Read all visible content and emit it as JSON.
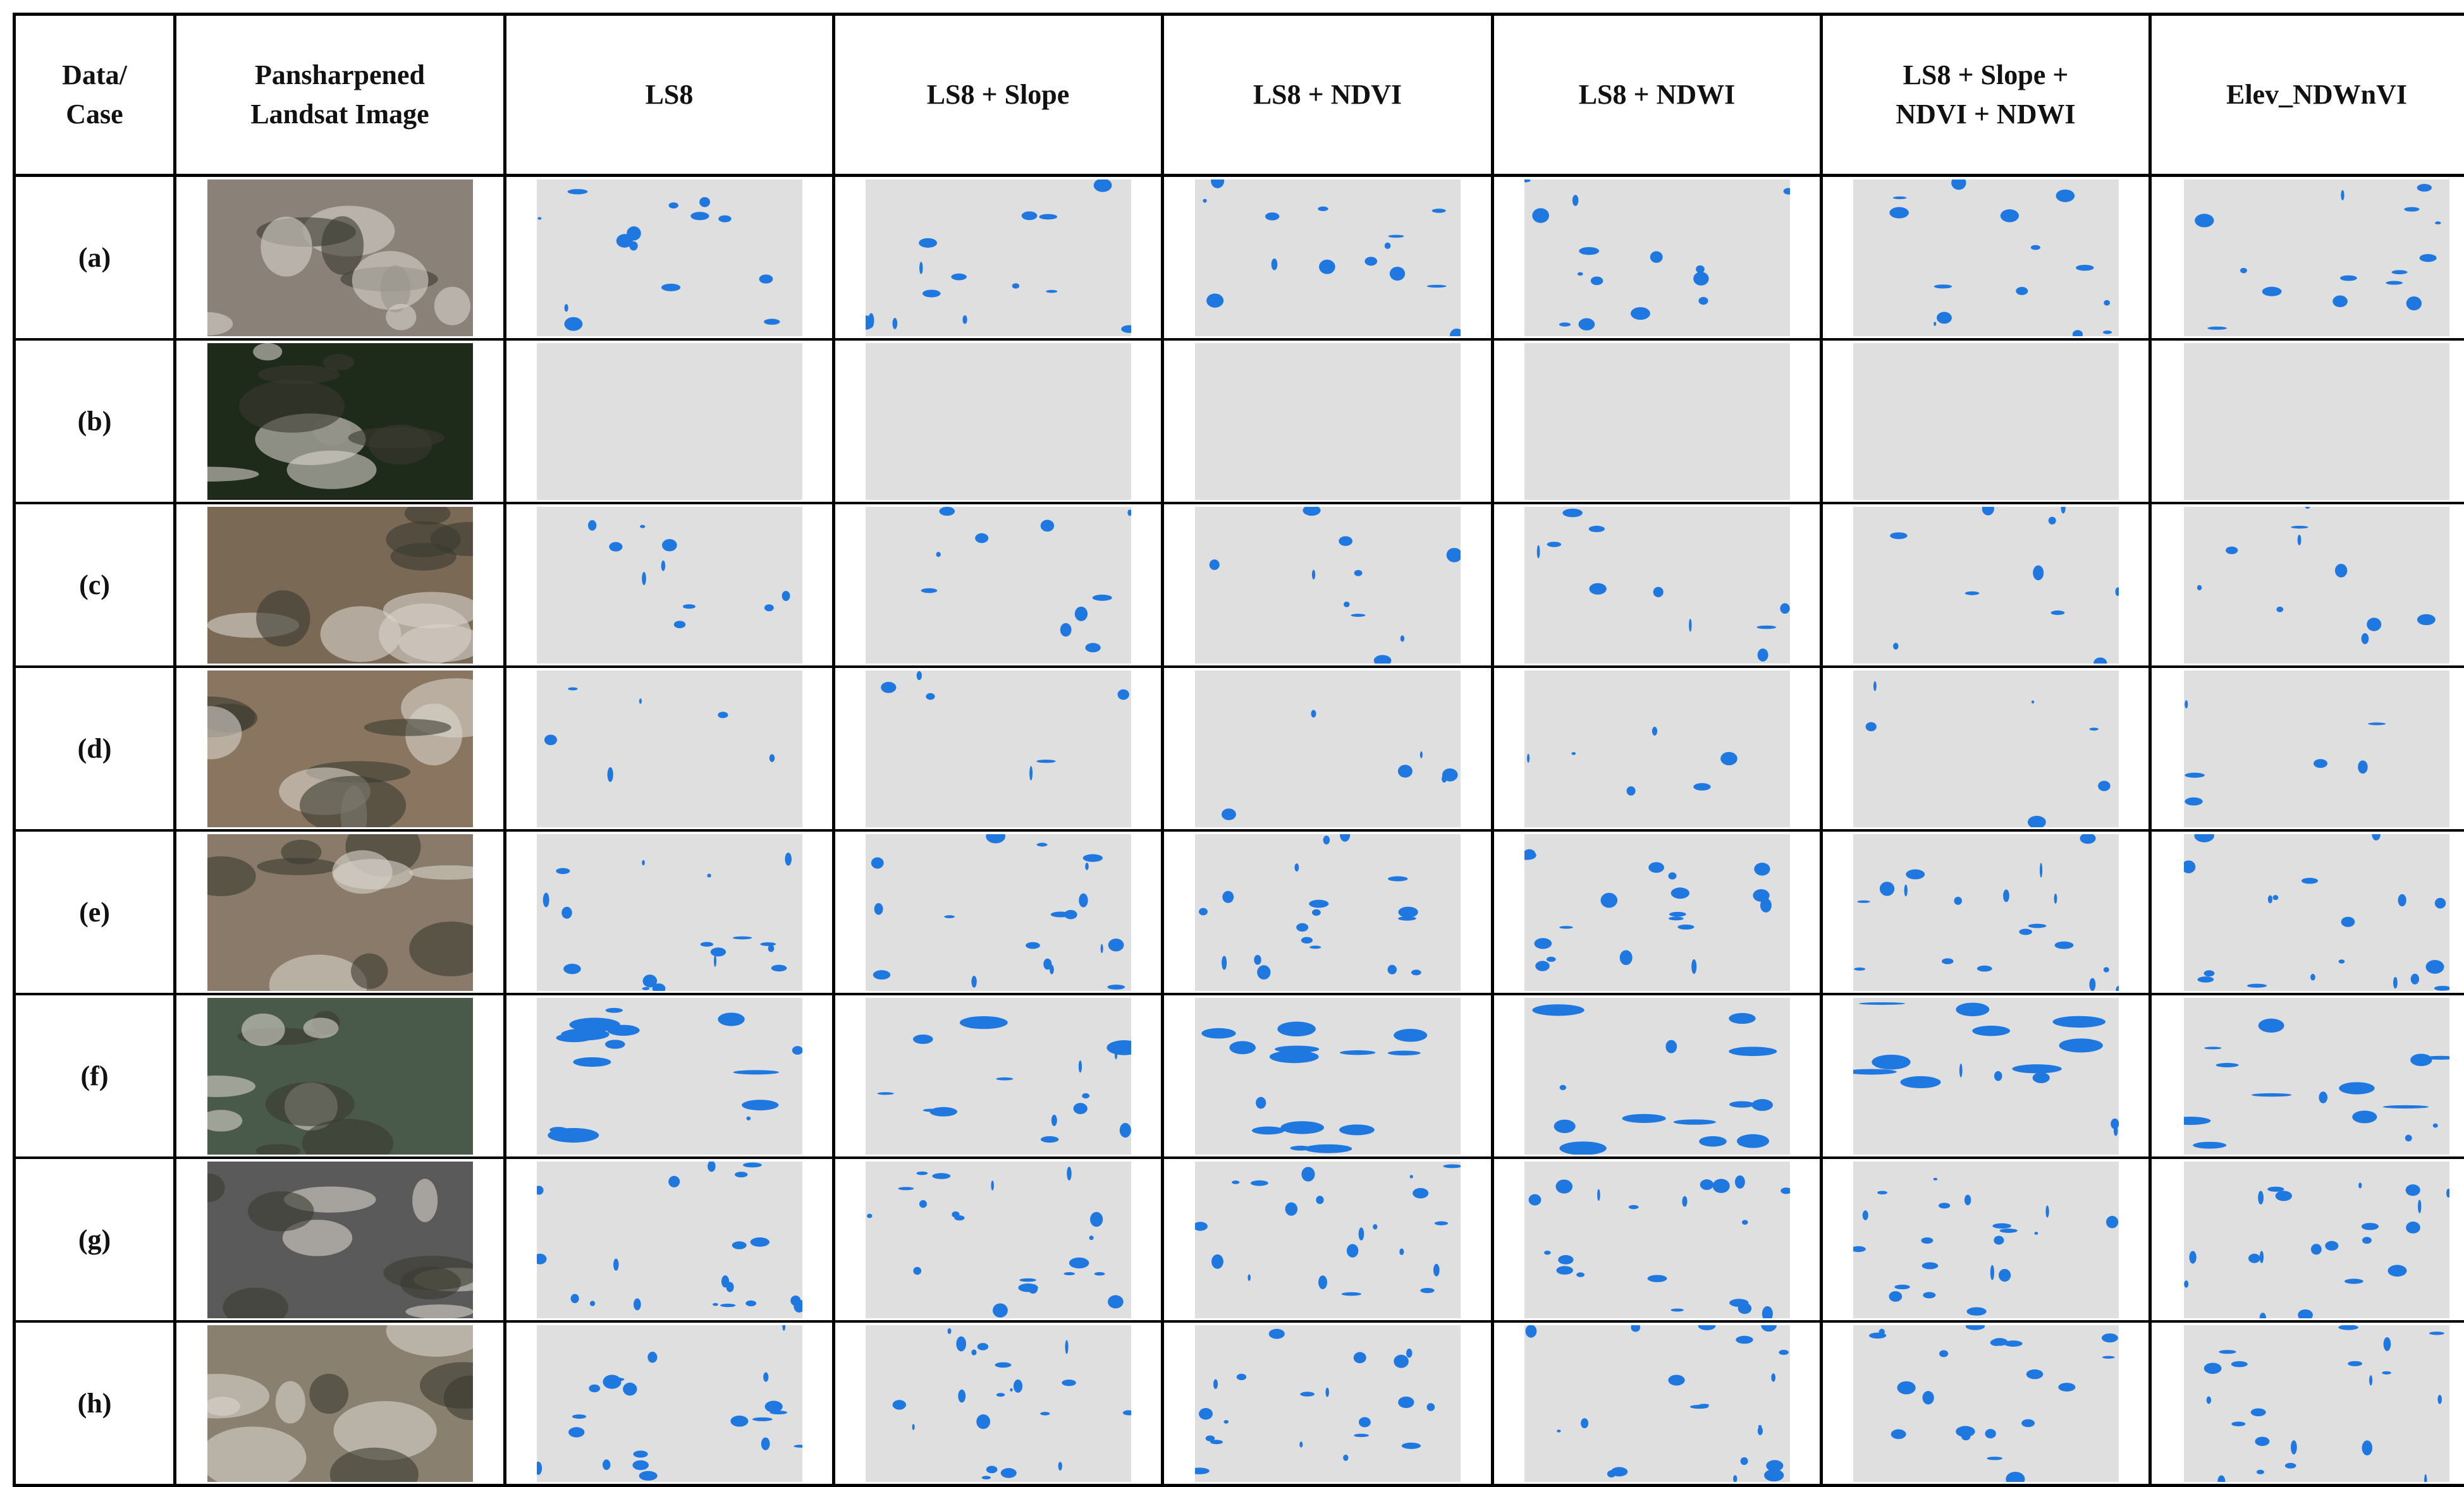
{
  "table": {
    "header": [
      "Data/\nCase",
      "Pansharpened\nLandsat Image",
      "LS8",
      "LS8 + Slope",
      "LS8 + NDVI",
      "LS8 + NDWI",
      "LS8 + Slope +\nNDVI + NDWI",
      "Elev_NDWnVI"
    ],
    "rows": [
      [
        "(a)"
      ],
      [
        "(b)"
      ],
      [
        "(c)"
      ],
      [
        "(d)"
      ],
      [
        "(e)"
      ],
      [
        "(f)"
      ],
      [
        "(g)"
      ],
      [
        "(h)"
      ]
    ]
  }
}
